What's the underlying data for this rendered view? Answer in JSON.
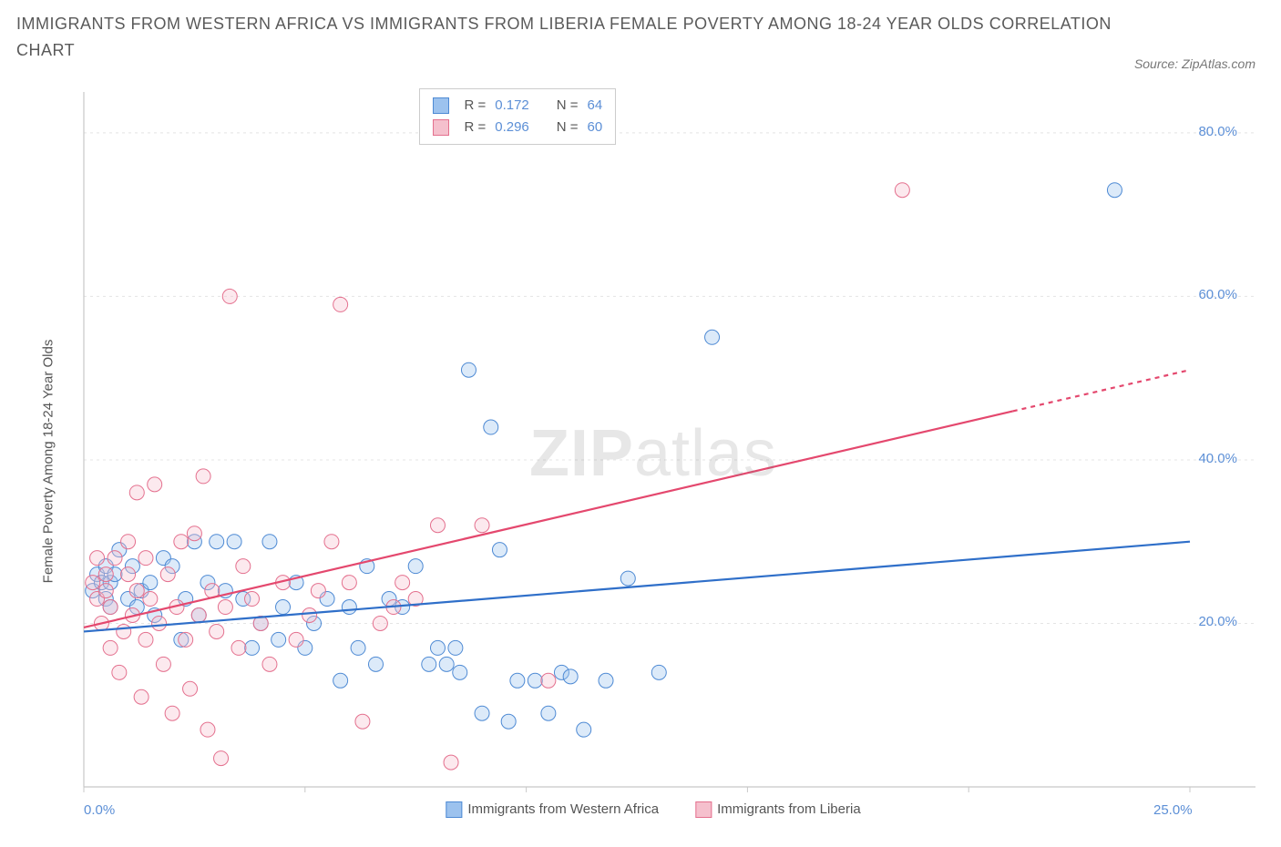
{
  "title": "IMMIGRANTS FROM WESTERN AFRICA VS IMMIGRANTS FROM LIBERIA FEMALE POVERTY AMONG 18-24 YEAR OLDS CORRELATION CHART",
  "source_credit": "Source: ZipAtlas.com",
  "watermark_a": "ZIP",
  "watermark_b": "atlas",
  "y_axis_label": "Female Poverty Among 18-24 Year Olds",
  "chart": {
    "type": "scatter",
    "background_color": "#ffffff",
    "grid_color": "#e4e4e4",
    "axis_line_color": "#c8c8c8",
    "tick_label_color": "#5c8fd6",
    "axis_label_color": "#555555",
    "title_color": "#5a5a5a",
    "title_fontsize": 18,
    "label_fontsize": 15,
    "tick_fontsize": 15,
    "xlim": [
      0,
      25
    ],
    "ylim": [
      0,
      85
    ],
    "x_ticks": [
      0,
      5,
      10,
      15,
      20,
      25
    ],
    "x_tick_labels": [
      "0.0%",
      "",
      "",
      "",
      "",
      "25.0%"
    ],
    "y_ticks": [
      20,
      40,
      60,
      80
    ],
    "y_tick_labels": [
      "20.0%",
      "40.0%",
      "60.0%",
      "80.0%"
    ],
    "marker_radius": 8,
    "marker_fill_opacity": 0.35,
    "marker_stroke_width": 1,
    "trend_line_width": 2.2
  },
  "series": [
    {
      "name": "Immigrants from Western Africa",
      "color_fill": "#9cc2ee",
      "color_stroke": "#4e8ad4",
      "trend_color": "#2f6fc9",
      "R": "0.172",
      "N": "64",
      "trend": {
        "x1": 0,
        "y1": 19.0,
        "x2": 25,
        "y2": 30.0,
        "dash_from_x": 25
      },
      "points": [
        [
          0.2,
          24
        ],
        [
          0.3,
          26
        ],
        [
          0.4,
          25
        ],
        [
          0.5,
          23
        ],
        [
          0.5,
          27
        ],
        [
          0.6,
          22
        ],
        [
          0.6,
          25
        ],
        [
          0.7,
          26
        ],
        [
          0.8,
          29
        ],
        [
          1.0,
          23
        ],
        [
          1.1,
          27
        ],
        [
          1.2,
          22
        ],
        [
          1.3,
          24
        ],
        [
          1.5,
          25
        ],
        [
          1.6,
          21
        ],
        [
          1.8,
          28
        ],
        [
          2.0,
          27
        ],
        [
          2.2,
          18
        ],
        [
          2.3,
          23
        ],
        [
          2.5,
          30
        ],
        [
          2.6,
          21
        ],
        [
          2.8,
          25
        ],
        [
          3.0,
          30
        ],
        [
          3.2,
          24
        ],
        [
          3.4,
          30
        ],
        [
          3.6,
          23
        ],
        [
          3.8,
          17
        ],
        [
          4.0,
          20
        ],
        [
          4.2,
          30
        ],
        [
          4.4,
          18
        ],
        [
          4.5,
          22
        ],
        [
          4.8,
          25
        ],
        [
          5.0,
          17
        ],
        [
          5.2,
          20
        ],
        [
          5.5,
          23
        ],
        [
          5.8,
          13
        ],
        [
          6.0,
          22
        ],
        [
          6.2,
          17
        ],
        [
          6.4,
          27
        ],
        [
          6.6,
          15
        ],
        [
          6.9,
          23
        ],
        [
          7.2,
          22
        ],
        [
          7.5,
          27
        ],
        [
          7.8,
          15
        ],
        [
          8.0,
          17
        ],
        [
          8.2,
          15
        ],
        [
          8.4,
          17
        ],
        [
          8.5,
          14
        ],
        [
          8.7,
          51
        ],
        [
          9.0,
          9
        ],
        [
          9.2,
          44
        ],
        [
          9.4,
          29
        ],
        [
          9.6,
          8
        ],
        [
          9.8,
          13
        ],
        [
          10.2,
          13
        ],
        [
          10.5,
          9
        ],
        [
          10.8,
          14
        ],
        [
          11.0,
          13.5
        ],
        [
          11.3,
          7
        ],
        [
          11.8,
          13
        ],
        [
          12.3,
          25.5
        ],
        [
          13.0,
          14
        ],
        [
          14.2,
          55
        ],
        [
          23.3,
          73
        ]
      ]
    },
    {
      "name": "Immigrants from Liberia",
      "color_fill": "#f5c0cd",
      "color_stroke": "#e4708e",
      "trend_color": "#e4486e",
      "R": "0.296",
      "N": "60",
      "trend": {
        "x1": 0,
        "y1": 19.5,
        "x2": 25,
        "y2": 51.0,
        "dash_from_x": 21
      },
      "points": [
        [
          0.2,
          25
        ],
        [
          0.3,
          23
        ],
        [
          0.3,
          28
        ],
        [
          0.4,
          20
        ],
        [
          0.5,
          24
        ],
        [
          0.5,
          26
        ],
        [
          0.6,
          17
        ],
        [
          0.6,
          22
        ],
        [
          0.7,
          28
        ],
        [
          0.8,
          14
        ],
        [
          0.9,
          19
        ],
        [
          1.0,
          26
        ],
        [
          1.0,
          30
        ],
        [
          1.1,
          21
        ],
        [
          1.2,
          24
        ],
        [
          1.2,
          36
        ],
        [
          1.3,
          11
        ],
        [
          1.4,
          18
        ],
        [
          1.4,
          28
        ],
        [
          1.5,
          23
        ],
        [
          1.6,
          37
        ],
        [
          1.7,
          20
        ],
        [
          1.8,
          15
        ],
        [
          1.9,
          26
        ],
        [
          2.0,
          9
        ],
        [
          2.1,
          22
        ],
        [
          2.2,
          30
        ],
        [
          2.3,
          18
        ],
        [
          2.4,
          12
        ],
        [
          2.5,
          31
        ],
        [
          2.6,
          21
        ],
        [
          2.7,
          38
        ],
        [
          2.8,
          7
        ],
        [
          2.9,
          24
        ],
        [
          3.0,
          19
        ],
        [
          3.1,
          3.5
        ],
        [
          3.2,
          22
        ],
        [
          3.3,
          60
        ],
        [
          3.5,
          17
        ],
        [
          3.6,
          27
        ],
        [
          3.8,
          23
        ],
        [
          4.0,
          20
        ],
        [
          4.2,
          15
        ],
        [
          4.5,
          25
        ],
        [
          4.8,
          18
        ],
        [
          5.1,
          21
        ],
        [
          5.3,
          24
        ],
        [
          5.6,
          30
        ],
        [
          5.8,
          59
        ],
        [
          6.0,
          25
        ],
        [
          6.3,
          8
        ],
        [
          6.7,
          20
        ],
        [
          7.0,
          22
        ],
        [
          7.2,
          25
        ],
        [
          7.5,
          23
        ],
        [
          8.0,
          32
        ],
        [
          8.3,
          3
        ],
        [
          9.0,
          32
        ],
        [
          10.5,
          13
        ],
        [
          18.5,
          73
        ]
      ]
    }
  ],
  "top_legend": {
    "r_label": "R =",
    "n_label": "N ="
  }
}
